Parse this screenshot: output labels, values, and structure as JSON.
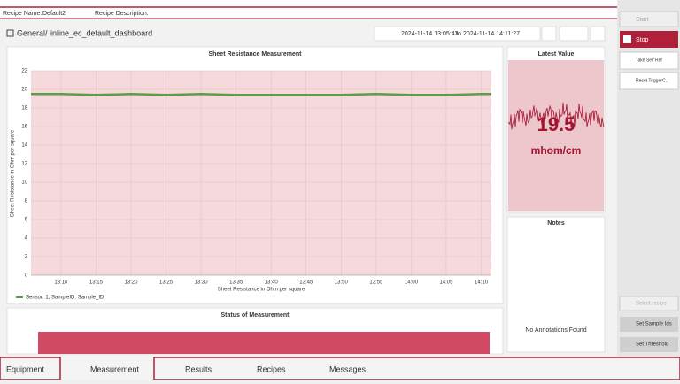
{
  "header": {
    "recipe_name_label": "Recipe Name:",
    "recipe_name": "Default2",
    "recipe_description_label": "Recipe Description:"
  },
  "breadcrumb": {
    "root": "General",
    "page": "inline_ec_default_dashboard"
  },
  "time_range": {
    "from": "2024-11-14 13:05:43",
    "separator": "to",
    "to": "2024-11-14 14:11:27"
  },
  "chart_data": {
    "type": "line",
    "title": "Sheet Resistance Measurement",
    "x_label": "Sheet Resistance in Ohm per square",
    "y_label": "Sheet Resistance in Ohm per square",
    "x": [
      "13:05:43",
      "13:10",
      "13:15",
      "13:20",
      "13:25",
      "13:30",
      "13:35",
      "13:40",
      "13:45",
      "13:50",
      "13:55",
      "14:00",
      "14:05",
      "14:10",
      "14:11:27"
    ],
    "series": [
      {
        "name": "Sensor: 1, SampleID: Sample_ID",
        "color": "#5a9e46",
        "values": [
          19.5,
          19.5,
          19.4,
          19.5,
          19.4,
          19.5,
          19.4,
          19.4,
          19.4,
          19.4,
          19.5,
          19.4,
          19.4,
          19.5,
          19.5
        ]
      }
    ],
    "xlim": [
      "13:05:43",
      "14:11:27"
    ],
    "xticks": [
      "13:10",
      "13:15",
      "13:20",
      "13:25",
      "13:30",
      "13:35",
      "13:40",
      "13:45",
      "13:50",
      "13:55",
      "14:00",
      "14:05",
      "14:10"
    ],
    "ylim": [
      0,
      22
    ],
    "yticks": [
      0,
      2,
      4,
      6,
      8,
      10,
      12,
      14,
      16,
      18,
      20,
      22
    ],
    "grid": true
  },
  "latest_value": {
    "title": "Latest Value",
    "value": "19.5",
    "unit": "mhom/cm"
  },
  "notes": {
    "title": "Notes",
    "empty": "No Annotations Found"
  },
  "status": {
    "title": "Status of Measurement"
  },
  "sidebar": {
    "start": "Start",
    "stop": "Stop",
    "take_self_ref": "Take Self Ref",
    "reset_trigger": "Reset TriggerC..",
    "select_recipe": "Select recipe",
    "set_sample_ids": "Set Sample Ids",
    "set_threshold": "Set Threshold"
  },
  "tabs": [
    "Equipment",
    "Measurement",
    "Results",
    "Recipes",
    "Messages"
  ]
}
